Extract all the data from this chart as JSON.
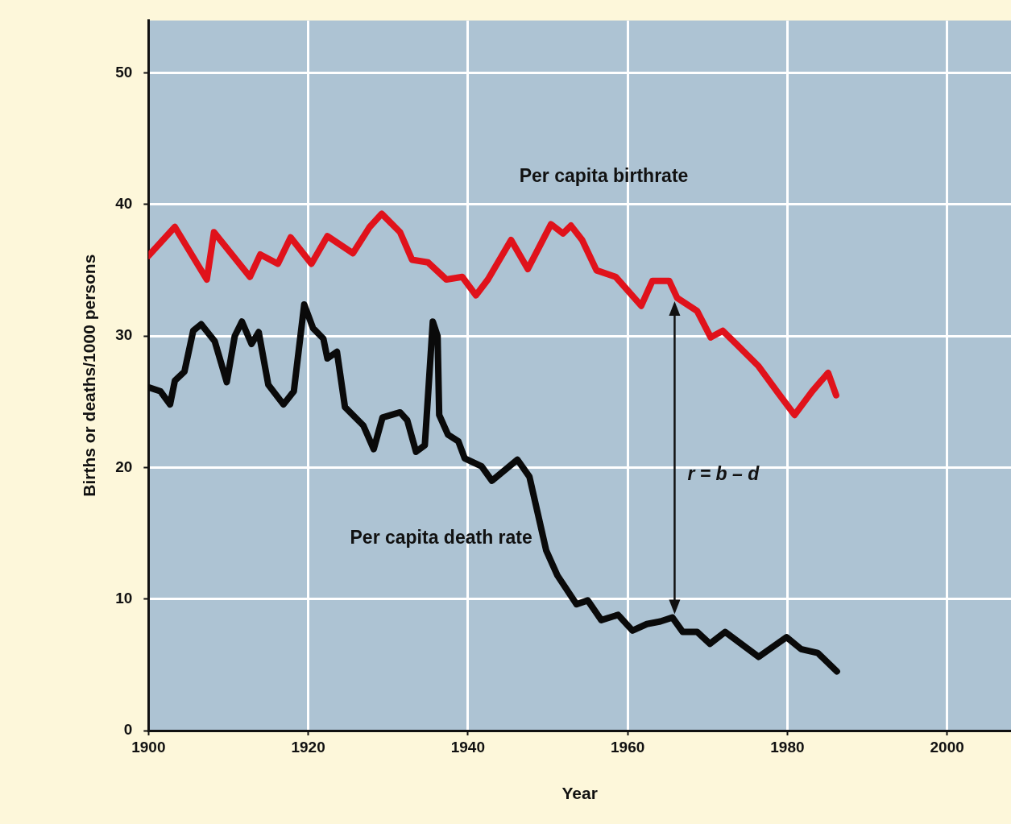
{
  "chart_data": {
    "type": "line",
    "xlabel": "Year",
    "ylabel": "Births or deaths/1000 persons",
    "xlim": [
      1900,
      2008
    ],
    "ylim": [
      0,
      54
    ],
    "xticks": [
      1900,
      1920,
      1940,
      1960,
      1980,
      2000
    ],
    "yticks": [
      0,
      10,
      20,
      30,
      40,
      50
    ],
    "grid": true,
    "legend": false,
    "marker": "none",
    "line_style": "solid",
    "series": [
      {
        "name": "Per capita birthrate",
        "color": "#e0121b",
        "x": [
          1900,
          1903.3,
          1907.3,
          1908.2,
          1912.7,
          1914,
          1916.2,
          1917.8,
          1920.4,
          1922.4,
          1925.6,
          1927.7,
          1929.2,
          1931.5,
          1933,
          1935,
          1937.3,
          1939.3,
          1941,
          1942.5,
          1945.4,
          1947.5,
          1950.4,
          1951.9,
          1952.9,
          1954.3,
          1956.1,
          1958.5,
          1961.7,
          1963.1,
          1965.2,
          1966.2,
          1968.7,
          1970.4,
          1971.9,
          1973.6,
          1976.4,
          1978.8,
          1980.9,
          1983.1,
          1985.1,
          1986.1
        ],
        "values": [
          36.1,
          38.3,
          34.3,
          37.9,
          34.5,
          36.2,
          35.5,
          37.5,
          35.5,
          37.6,
          36.3,
          38.3,
          39.3,
          37.9,
          35.8,
          35.6,
          34.3,
          34.5,
          33.1,
          34.3,
          37.3,
          35.1,
          38.5,
          37.8,
          38.4,
          37.3,
          35,
          34.5,
          32.3,
          34.2,
          34.2,
          32.9,
          31.9,
          29.9,
          30.4,
          29.4,
          27.7,
          25.7,
          24,
          25.8,
          27.2,
          25.5
        ]
      },
      {
        "name": "Per capita death rate",
        "color": "#0a0a0a",
        "x": [
          1900,
          1901.5,
          1902.7,
          1903.3,
          1904.5,
          1905.6,
          1906.6,
          1908.3,
          1909.8,
          1910.8,
          1911.7,
          1912.9,
          1913.8,
          1915,
          1916.9,
          1918.2,
          1919.5,
          1920.6,
          1921.9,
          1922.4,
          1923.6,
          1924.6,
          1926.9,
          1928.2,
          1929.3,
          1931.5,
          1932.4,
          1933.5,
          1934.6,
          1935.6,
          1936.2,
          1936.4,
          1937.5,
          1938.8,
          1939.6,
          1941.7,
          1943,
          1946.2,
          1947.7,
          1949.8,
          1951.2,
          1953.6,
          1955,
          1956.7,
          1958.8,
          1960.6,
          1962.4,
          1964.1,
          1965.6,
          1966.9,
          1968.7,
          1970.3,
          1972.2,
          1976.4,
          1979.9,
          1981.7,
          1983.8,
          1986.2
        ],
        "values": [
          26.1,
          25.8,
          24.8,
          26.6,
          27.3,
          30.4,
          30.9,
          29.6,
          26.5,
          30,
          31.1,
          29.4,
          30.3,
          26.3,
          24.8,
          25.8,
          32.4,
          30.6,
          29.8,
          28.3,
          28.8,
          24.6,
          23.2,
          21.4,
          23.8,
          24.2,
          23.6,
          21.2,
          21.7,
          31.1,
          30,
          24,
          22.5,
          22,
          20.7,
          20.1,
          19,
          20.6,
          19.3,
          13.7,
          11.8,
          9.6,
          9.9,
          8.4,
          8.8,
          7.6,
          8.1,
          8.3,
          8.6,
          7.5,
          7.5,
          6.6,
          7.5,
          5.6,
          7.1,
          6.2,
          5.9,
          4.5
        ]
      }
    ],
    "annotations": [
      "r = b – d"
    ]
  }
}
